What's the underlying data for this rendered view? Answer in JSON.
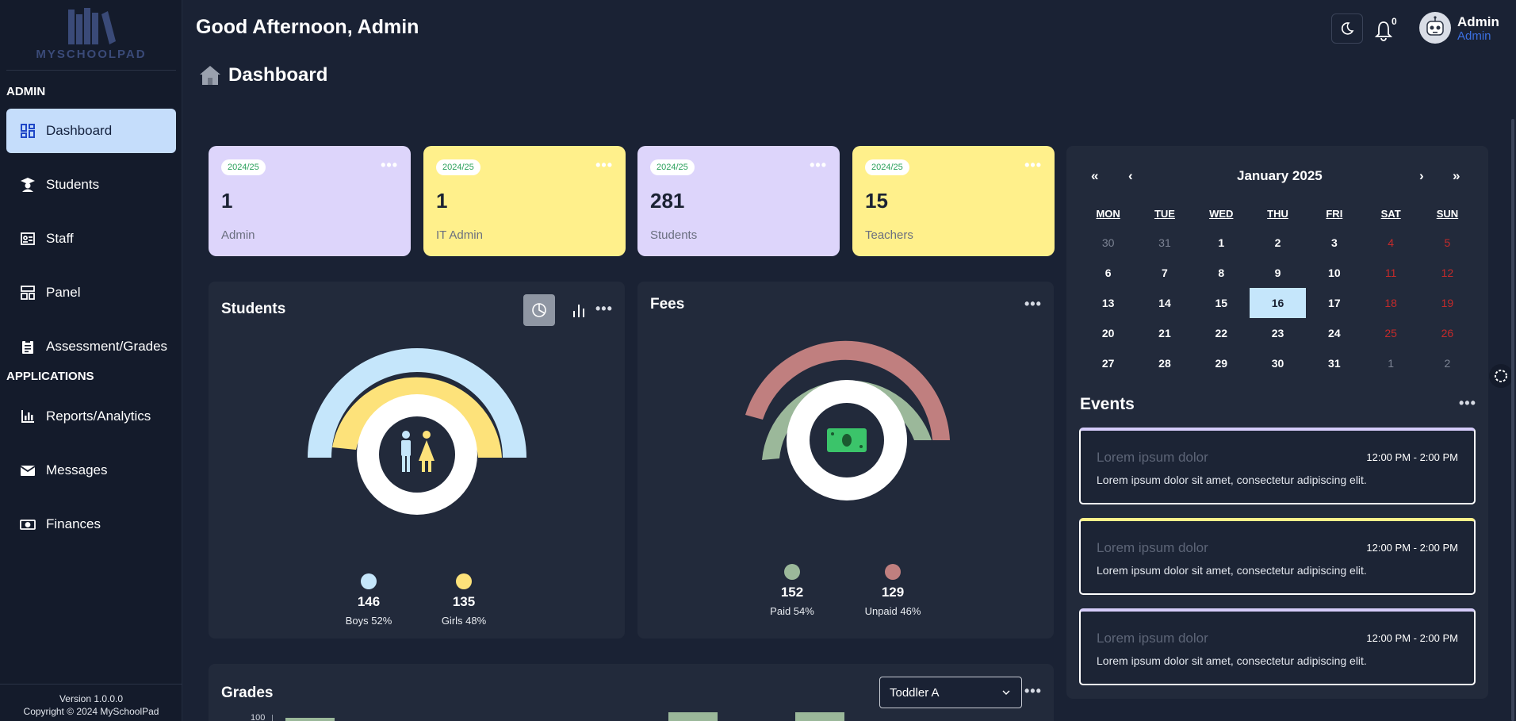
{
  "brand": {
    "name": "MYSCHOOLPAD"
  },
  "sidebar": {
    "sections": [
      {
        "label": "ADMIN"
      },
      {
        "label": "APPLICATIONS"
      }
    ],
    "items": [
      {
        "label": "Dashboard",
        "icon": "dashboard-icon",
        "active": true
      },
      {
        "label": "Students",
        "icon": "student-icon"
      },
      {
        "label": "Staff",
        "icon": "id-card-icon"
      },
      {
        "label": "Panel",
        "icon": "panel-icon"
      },
      {
        "label": "Assessment/Grades",
        "icon": "clipboard-icon"
      },
      {
        "label": "Reports/Analytics",
        "icon": "bar-chart-icon"
      },
      {
        "label": "Messages",
        "icon": "envelope-icon"
      },
      {
        "label": "Finances",
        "icon": "money-icon"
      }
    ],
    "footer": {
      "version": "Version 1.0.0.0",
      "copyright": "Copyright © 2024 MySchoolPad"
    }
  },
  "header": {
    "greeting": "Good Afternoon, Admin",
    "page_title": "Dashboard",
    "notifications": "0",
    "user_name": "Admin",
    "user_role": "Admin"
  },
  "stats": [
    {
      "year": "2024/25",
      "value": "1",
      "label": "Admin",
      "color": "#ddd5fb"
    },
    {
      "year": "2024/25",
      "value": "1",
      "label": "IT Admin",
      "color": "#fff08b"
    },
    {
      "year": "2024/25",
      "value": "281",
      "label": "Students",
      "color": "#ddd5fb"
    },
    {
      "year": "2024/25",
      "value": "15",
      "label": "Teachers",
      "color": "#fff08b"
    }
  ],
  "students_panel": {
    "title": "Students",
    "legend": [
      {
        "value": "146",
        "caption": "Boys 52%",
        "color": "#c5e6fb"
      },
      {
        "value": "135",
        "caption": "Girls 48%",
        "color": "#fde27a"
      }
    ]
  },
  "fees_panel": {
    "title": "Fees",
    "legend": [
      {
        "value": "152",
        "caption": "Paid 54%",
        "color": "#9bb89a"
      },
      {
        "value": "129",
        "caption": "Unpaid 46%",
        "color": "#c07f7f"
      }
    ]
  },
  "calendar": {
    "first": "«",
    "prev": "‹",
    "next": "›",
    "last": "»",
    "month": "January 2025",
    "weekdays": [
      "MON",
      "TUE",
      "WED",
      "THU",
      "FRI",
      "SAT",
      "SUN"
    ],
    "weeks": [
      [
        "30",
        "31",
        "1",
        "2",
        "3",
        "4",
        "5"
      ],
      [
        "6",
        "7",
        "8",
        "9",
        "10",
        "11",
        "12"
      ],
      [
        "13",
        "14",
        "15",
        "16",
        "17",
        "18",
        "19"
      ],
      [
        "20",
        "21",
        "22",
        "23",
        "24",
        "25",
        "26"
      ],
      [
        "27",
        "28",
        "29",
        "30",
        "31",
        "1",
        "2"
      ]
    ],
    "today": "16"
  },
  "events": {
    "title": "Events",
    "items": [
      {
        "title": "Lorem ipsum dolor",
        "time": "12:00 PM - 2:00 PM",
        "desc": "Lorem ipsum dolor sit amet, consectetur adipiscing elit."
      },
      {
        "title": "Lorem ipsum dolor",
        "time": "12:00 PM - 2:00 PM",
        "desc": "Lorem ipsum dolor sit amet, consectetur adipiscing elit."
      },
      {
        "title": "Lorem ipsum dolor",
        "time": "12:00 PM - 2:00 PM",
        "desc": "Lorem ipsum dolor sit amet, consectetur adipiscing elit."
      }
    ]
  },
  "grades": {
    "title": "Grades",
    "selected_class": "Toddler A",
    "y_tick_top": "100"
  },
  "colors": {
    "accent": "#3b6fe0",
    "active_nav": "#c5ddfb",
    "panel": "#222a3b"
  }
}
